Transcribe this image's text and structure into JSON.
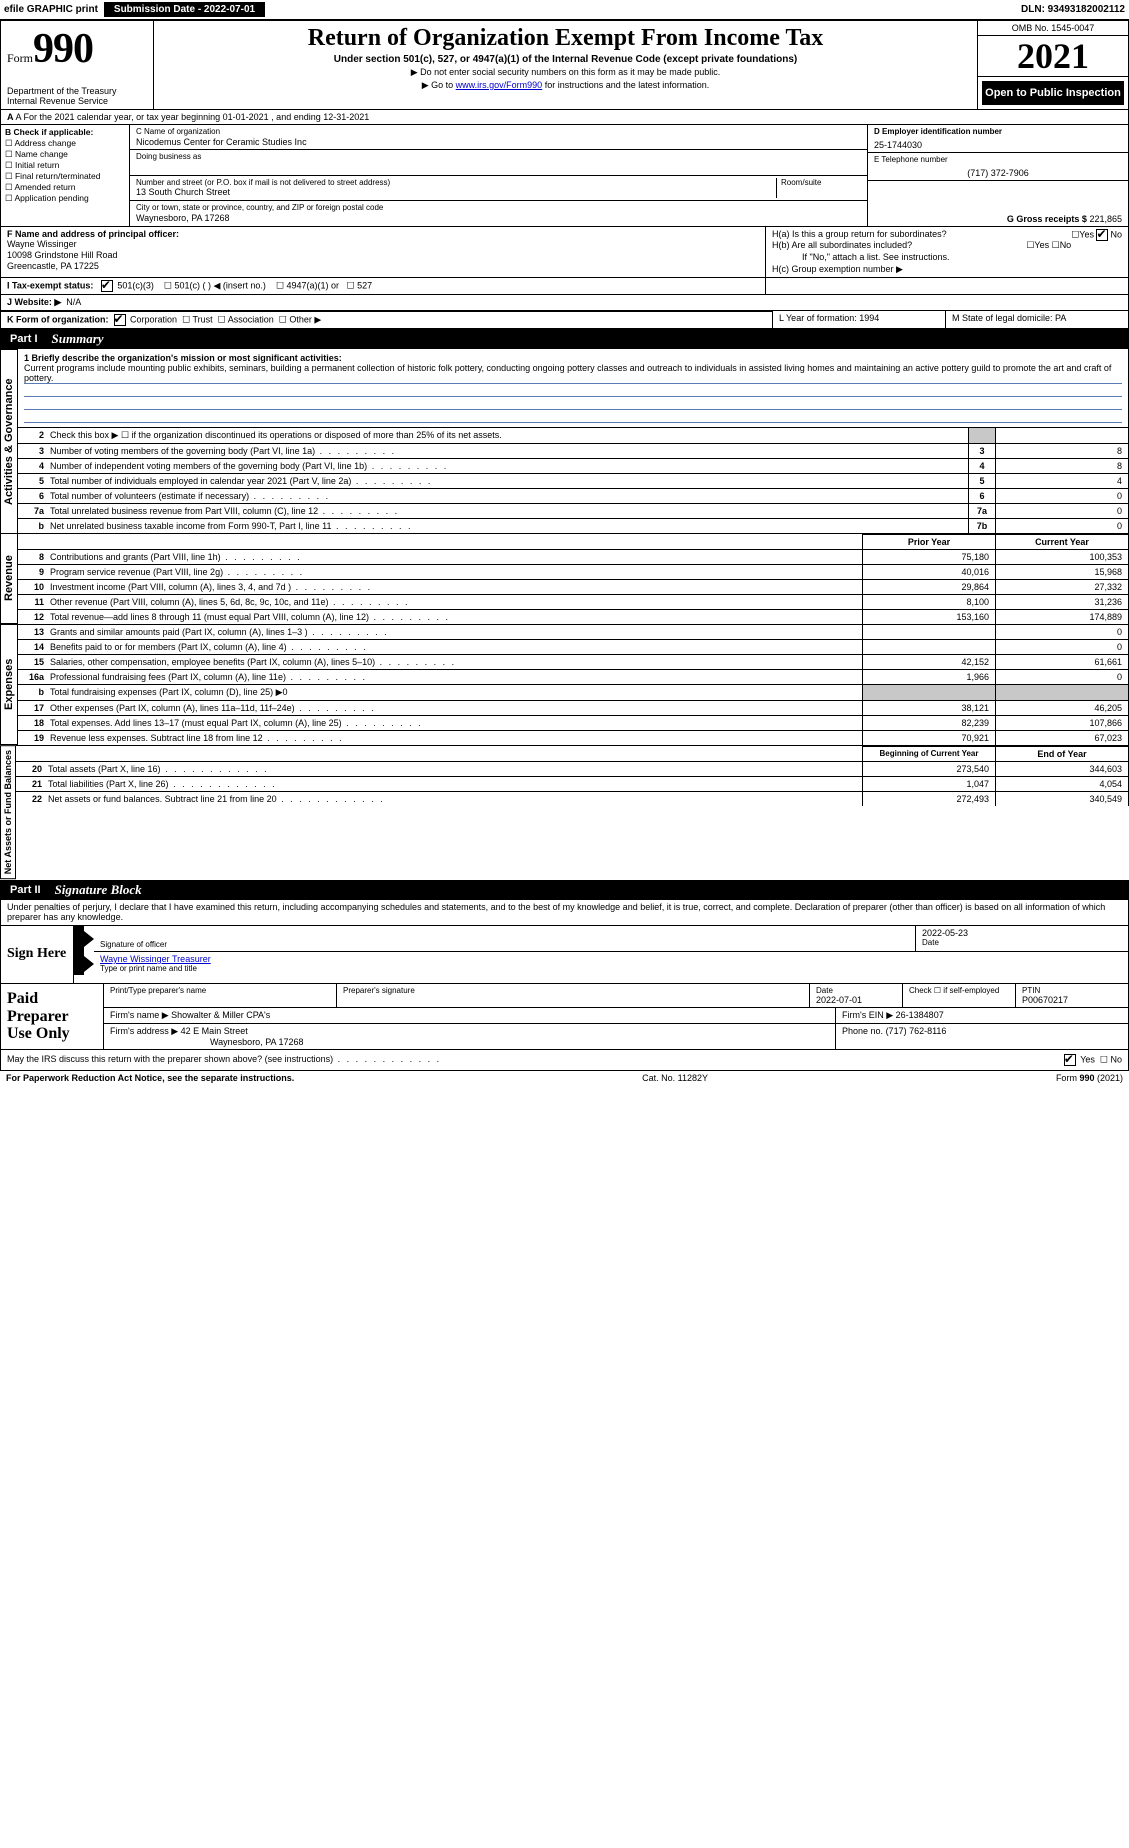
{
  "topbar": {
    "efile": "efile GRAPHIC print",
    "sub_date_label": "Submission Date - 2022-07-01",
    "dln": "DLN: 93493182002112"
  },
  "header": {
    "form_word": "Form",
    "form_no": "990",
    "dept": "Department of the Treasury\nInternal Revenue Service",
    "title": "Return of Organization Exempt From Income Tax",
    "sub1": "Under section 501(c), 527, or 4947(a)(1) of the Internal Revenue Code (except private foundations)",
    "sub2": "▶ Do not enter social security numbers on this form as it may be made public.",
    "sub3_pre": "▶ Go to ",
    "sub3_link": "www.irs.gov/Form990",
    "sub3_post": " for instructions and the latest information.",
    "omb": "OMB No. 1545-0047",
    "year": "2021",
    "open": "Open to Public Inspection"
  },
  "line_a": "A For the 2021 calendar year, or tax year beginning 01-01-2021     , and ending 12-31-2021",
  "col_b": {
    "label": "B Check if applicable:",
    "items": [
      "Address change",
      "Name change",
      "Initial return",
      "Final return/terminated",
      "Amended return",
      "Application pending"
    ]
  },
  "col_c": {
    "c_label": "C Name of organization",
    "name": "Nicodemus Center for Ceramic Studies Inc",
    "dba_label": "Doing business as",
    "addr_label": "Number and street (or P.O. box if mail is not delivered to street address)",
    "room_label": "Room/suite",
    "street": "13 South Church Street",
    "city_label": "City or town, state or province, country, and ZIP or foreign postal code",
    "city": "Waynesboro, PA  17268"
  },
  "col_d": {
    "d_label": "D Employer identification number",
    "ein": "25-1744030",
    "e_label": "E Telephone number",
    "phone": "(717) 372-7906",
    "g_label": "G Gross receipts $",
    "g_val": "221,865"
  },
  "row_f": {
    "f_label": "F Name and address of principal officer:",
    "name": "Wayne Wissinger",
    "addr1": "10098 Grindstone Hill Road",
    "addr2": "Greencastle, PA  17225"
  },
  "row_h": {
    "ha": "H(a)  Is this a group return for subordinates?",
    "hb": "H(b)  Are all subordinates included?",
    "hb2": "If \"No,\" attach a list. See instructions.",
    "hc": "H(c)  Group exemption number ▶",
    "yes": "Yes",
    "no": "No"
  },
  "row_i_label": "I  Tax-exempt status:",
  "row_i_opts": [
    "501(c)(3)",
    "501(c) (   ) ◀ (insert no.)",
    "4947(a)(1) or",
    "527"
  ],
  "row_j": {
    "label": "J  Website: ▶",
    "val": "N/A"
  },
  "row_k": {
    "label": "K Form of organization:",
    "opts": [
      "Corporation",
      "Trust",
      "Association",
      "Other ▶"
    ]
  },
  "row_lm": {
    "l": "L Year of formation: 1994",
    "m": "M State of legal domicile: PA"
  },
  "part1": {
    "num": "Part I",
    "title": "Summary"
  },
  "mission": {
    "prompt": "1  Briefly describe the organization's mission or most significant activities:",
    "text": "Current programs include mounting public exhibits, seminars, building a permanent collection of historic folk pottery, conducting ongoing pottery classes and outreach to individuals in assisted living homes and maintaining an active pottery guild to promote the art and craft of pottery."
  },
  "sidetabs": {
    "gov": "Activities & Governance",
    "rev": "Revenue",
    "exp": "Expenses",
    "net": "Net Assets or Fund Balances"
  },
  "gov_rows": [
    {
      "n": "2",
      "d": "Check this box ▶ ☐  if the organization discontinued its operations or disposed of more than 25% of its net assets.",
      "box": "",
      "v": ""
    },
    {
      "n": "3",
      "d": "Number of voting members of the governing body (Part VI, line 1a)",
      "box": "3",
      "v": "8"
    },
    {
      "n": "4",
      "d": "Number of independent voting members of the governing body (Part VI, line 1b)",
      "box": "4",
      "v": "8"
    },
    {
      "n": "5",
      "d": "Total number of individuals employed in calendar year 2021 (Part V, line 2a)",
      "box": "5",
      "v": "4"
    },
    {
      "n": "6",
      "d": "Total number of volunteers (estimate if necessary)",
      "box": "6",
      "v": "0"
    },
    {
      "n": "7a",
      "d": "Total unrelated business revenue from Part VIII, column (C), line 12",
      "box": "7a",
      "v": "0"
    },
    {
      "n": "b",
      "d": "Net unrelated business taxable income from Form 990-T, Part I, line 11",
      "box": "7b",
      "v": "0"
    }
  ],
  "rev_head": {
    "p": "Prior Year",
    "c": "Current Year"
  },
  "rev_rows": [
    {
      "n": "8",
      "d": "Contributions and grants (Part VIII, line 1h)",
      "p": "75,180",
      "c": "100,353"
    },
    {
      "n": "9",
      "d": "Program service revenue (Part VIII, line 2g)",
      "p": "40,016",
      "c": "15,968"
    },
    {
      "n": "10",
      "d": "Investment income (Part VIII, column (A), lines 3, 4, and 7d )",
      "p": "29,864",
      "c": "27,332"
    },
    {
      "n": "11",
      "d": "Other revenue (Part VIII, column (A), lines 5, 6d, 8c, 9c, 10c, and 11e)",
      "p": "8,100",
      "c": "31,236"
    },
    {
      "n": "12",
      "d": "Total revenue—add lines 8 through 11 (must equal Part VIII, column (A), line 12)",
      "p": "153,160",
      "c": "174,889"
    }
  ],
  "exp_rows": [
    {
      "n": "13",
      "d": "Grants and similar amounts paid (Part IX, column (A), lines 1–3 )",
      "p": "",
      "c": "0"
    },
    {
      "n": "14",
      "d": "Benefits paid to or for members (Part IX, column (A), line 4)",
      "p": "",
      "c": "0"
    },
    {
      "n": "15",
      "d": "Salaries, other compensation, employee benefits (Part IX, column (A), lines 5–10)",
      "p": "42,152",
      "c": "61,661"
    },
    {
      "n": "16a",
      "d": "Professional fundraising fees (Part IX, column (A), line 11e)",
      "p": "1,966",
      "c": "0"
    },
    {
      "n": "b",
      "d": "Total fundraising expenses (Part IX, column (D), line 25) ▶0",
      "p": "SHADE",
      "c": "SHADE"
    },
    {
      "n": "17",
      "d": "Other expenses (Part IX, column (A), lines 11a–11d, 11f–24e)",
      "p": "38,121",
      "c": "46,205"
    },
    {
      "n": "18",
      "d": "Total expenses. Add lines 13–17 (must equal Part IX, column (A), line 25)",
      "p": "82,239",
      "c": "107,866"
    },
    {
      "n": "19",
      "d": "Revenue less expenses. Subtract line 18 from line 12",
      "p": "70,921",
      "c": "67,023"
    }
  ],
  "net_head": {
    "p": "Beginning of Current Year",
    "c": "End of Year"
  },
  "net_rows": [
    {
      "n": "20",
      "d": "Total assets (Part X, line 16)",
      "p": "273,540",
      "c": "344,603"
    },
    {
      "n": "21",
      "d": "Total liabilities (Part X, line 26)",
      "p": "1,047",
      "c": "4,054"
    },
    {
      "n": "22",
      "d": "Net assets or fund balances. Subtract line 21 from line 20",
      "p": "272,493",
      "c": "340,549"
    }
  ],
  "part2": {
    "num": "Part II",
    "title": "Signature Block"
  },
  "penalties": "Under penalties of perjury, I declare that I have examined this return, including accompanying schedules and statements, and to the best of my knowledge and belief, it is true, correct, and complete. Declaration of preparer (other than officer) is based on all information of which preparer has any knowledge.",
  "sign": {
    "left": "Sign Here",
    "sig_label": "Signature of officer",
    "date": "2022-05-23",
    "date_label": "Date",
    "name": "Wayne Wissinger Treasurer",
    "name_label": "Type or print name and title"
  },
  "prep": {
    "left": "Paid Preparer Use Only",
    "h_print": "Print/Type preparer's name",
    "h_sig": "Preparer's signature",
    "h_date": "Date",
    "date": "2022-07-01",
    "h_check": "Check ☐ if self-employed",
    "h_ptin": "PTIN",
    "ptin": "P00670217",
    "firm_name_l": "Firm's name      ▶",
    "firm_name": "Showalter & Miller CPA's",
    "firm_ein_l": "Firm's EIN ▶",
    "firm_ein": "26-1384807",
    "firm_addr_l": "Firm's address ▶",
    "firm_addr1": "42 E Main Street",
    "firm_addr2": "Waynesboro, PA  17268",
    "phone_l": "Phone no.",
    "phone": "(717) 762-8116"
  },
  "may_irs": "May the IRS discuss this return with the preparer shown above? (see instructions)",
  "footer": {
    "pra": "For Paperwork Reduction Act Notice, see the separate instructions.",
    "cat": "Cat. No. 11282Y",
    "form": "Form 990 (2021)"
  },
  "colors": {
    "blue_line": "#5b7bb4",
    "link": "#0000cc",
    "shade": "#c8c8c8"
  }
}
